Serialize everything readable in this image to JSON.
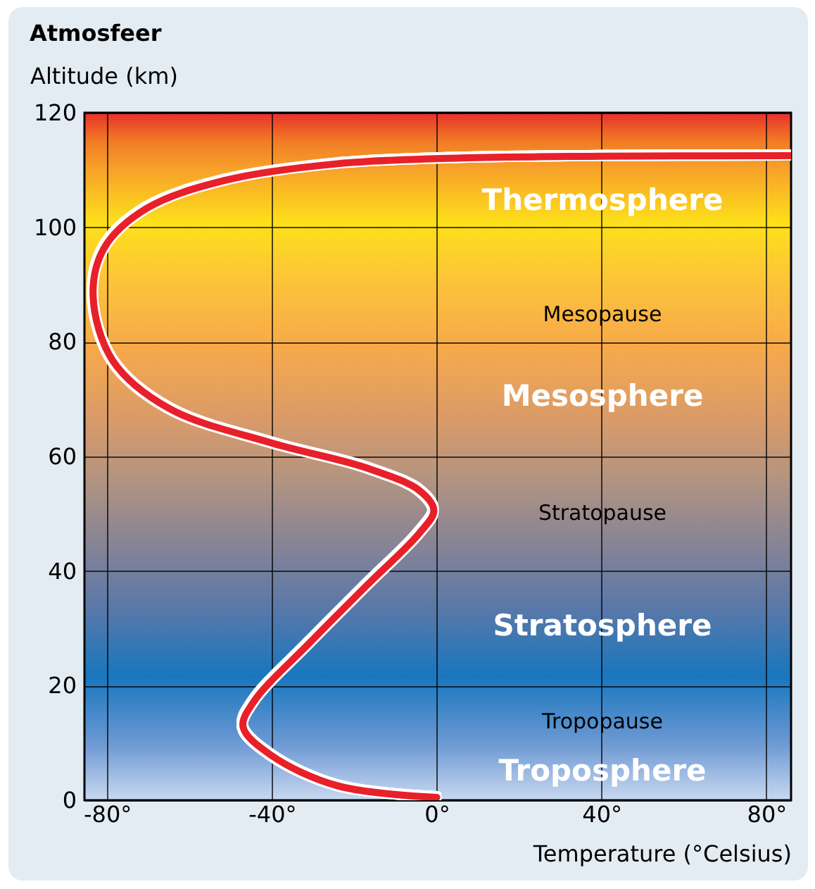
{
  "chart_data": {
    "type": "line",
    "title": "Atmosfeer",
    "ylabel": "Altitude (km)",
    "xlabel": "Temperature (°Celsius)",
    "x": [
      0,
      -24,
      -40.3,
      -47,
      -44.4,
      -30.8,
      -17.1,
      -4.1,
      -0.7,
      -4.1,
      -17,
      -40.3,
      -65,
      -78.6,
      -83.4,
      -80.7,
      -70.4,
      -51.3,
      -24,
      6,
      40,
      86
    ],
    "series": [
      {
        "color": "#e8202a",
        "values": [
          0.5,
          2.5,
          7.9,
          12.8,
          17.2,
          27.5,
          37.4,
          46.7,
          50.6,
          54,
          58,
          62.4,
          68.4,
          76.7,
          88,
          96.4,
          103.3,
          108.2,
          111.1,
          112.1,
          112.4,
          112.5
        ]
      }
    ],
    "xlim": [
      -85.5,
      86
    ],
    "ylim": [
      0,
      120
    ],
    "xticks": [
      {
        "value": -80,
        "label": "-80°"
      },
      {
        "value": -40,
        "label": "-40°"
      },
      {
        "value": 0,
        "label": "0°"
      },
      {
        "value": 40,
        "label": "40°"
      },
      {
        "value": 80,
        "label": "80°"
      }
    ],
    "yticks": [
      0,
      20,
      40,
      60,
      80,
      100,
      120
    ],
    "grid": true,
    "line_style": "solid",
    "marker": "none",
    "annotations": [
      "Thermosphere",
      "Mesopause",
      "Mesosphere",
      "Stratopause",
      "Stratosphere",
      "Tropopause",
      "Troposphere"
    ]
  }
}
